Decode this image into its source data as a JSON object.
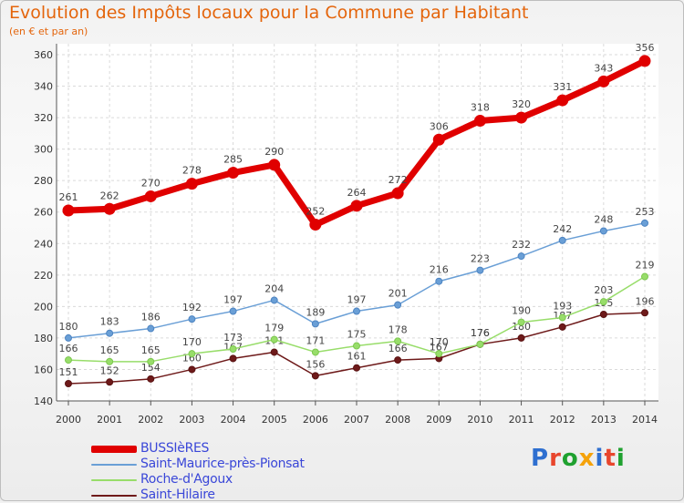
{
  "header": {
    "title": "Evolution des Impôts locaux pour la Commune par Habitant",
    "subtitle": "(en € et par an)"
  },
  "logo": {
    "letters": [
      "P",
      "r",
      "o",
      "x",
      "i",
      "t",
      "i"
    ],
    "colors": [
      "#2e6fd0",
      "#e8462d",
      "#1fa12f",
      "#f5a20a",
      "#2e6fd0",
      "#e8462d",
      "#1fa12f"
    ]
  },
  "chart_data": {
    "type": "line",
    "title": "Evolution des Impôts locaux pour la Commune par Habitant",
    "subtitle": "(en € et par an)",
    "xlabel": "",
    "ylabel": "",
    "ylim": [
      140,
      360
    ],
    "yticks": [
      140,
      160,
      180,
      200,
      220,
      240,
      260,
      280,
      300,
      320,
      340,
      360
    ],
    "grid": true,
    "legend_position": "bottom-left",
    "x": [
      "2000",
      "2001",
      "2002",
      "2003",
      "2004",
      "2005",
      "2006",
      "2007",
      "2008",
      "2009",
      "2010",
      "2011",
      "2012",
      "2013",
      "2014"
    ],
    "series": [
      {
        "name": "BUSSIèRES",
        "color": "#e00000",
        "values": [
          261,
          262,
          270,
          278,
          285,
          290,
          252,
          264,
          272,
          306,
          318,
          320,
          331,
          343,
          356
        ]
      },
      {
        "name": "Saint-Maurice-près-Pionsat",
        "color": "#6a9fd6",
        "values": [
          180,
          183,
          186,
          192,
          197,
          204,
          189,
          197,
          201,
          216,
          223,
          232,
          242,
          248,
          253
        ]
      },
      {
        "name": "Roche-d'Agoux",
        "color": "#98dd6a",
        "values": [
          166,
          165,
          165,
          170,
          173,
          179,
          171,
          175,
          178,
          170,
          176,
          190,
          193,
          203,
          219
        ]
      },
      {
        "name": "Saint-Hilaire",
        "color": "#6e1a1a",
        "values": [
          151,
          152,
          154,
          160,
          167,
          171,
          156,
          161,
          166,
          167,
          176,
          180,
          187,
          195,
          196
        ]
      }
    ]
  }
}
